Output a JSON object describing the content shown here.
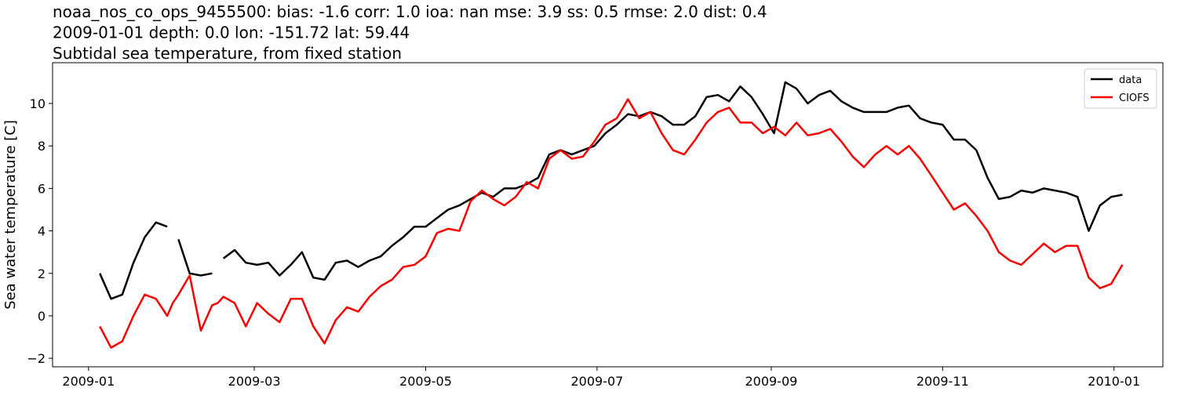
{
  "chart_data": {
    "type": "line",
    "title_lines": [
      "noaa_nos_co_ops_9455500: bias: -1.6  corr: 1.0  ioa: nan  mse: 3.9  ss: 0.5  rmse: 2.0  dist: 0.4",
      "2009-01-01 depth: 0.0 lon: -151.72 lat: 59.44",
      "Subtidal sea temperature, from fixed station"
    ],
    "ylabel": "Sea water temperature [C]",
    "x": [
      4,
      8,
      12,
      16,
      20,
      24,
      28,
      30,
      32,
      36,
      40,
      44,
      46,
      48,
      52,
      56,
      60,
      64,
      68,
      72,
      76,
      80,
      84,
      88,
      92,
      96,
      100,
      104,
      108,
      112,
      116,
      120,
      124,
      128,
      132,
      136,
      140,
      144,
      148,
      152,
      156,
      160,
      164,
      168,
      172,
      176,
      180,
      184,
      188,
      192,
      196,
      200,
      204,
      208,
      212,
      216,
      220,
      224,
      228,
      232,
      236,
      240,
      244,
      248,
      252,
      256,
      260,
      264,
      268,
      272,
      276,
      280,
      284,
      288,
      292,
      296,
      300,
      304,
      308,
      312,
      316,
      320,
      324,
      328,
      332,
      336,
      340,
      344,
      348,
      352,
      356,
      360,
      364,
      368
    ],
    "series": [
      {
        "name": "data",
        "color": "#000000",
        "values": [
          2.0,
          0.8,
          1.0,
          2.5,
          3.7,
          4.4,
          4.2,
          null,
          3.6,
          2.0,
          1.9,
          2.0,
          null,
          2.7,
          3.1,
          2.5,
          2.4,
          2.5,
          1.9,
          2.4,
          3.0,
          1.8,
          1.7,
          2.5,
          2.6,
          2.3,
          2.6,
          2.8,
          3.3,
          3.7,
          4.2,
          4.2,
          4.6,
          5.0,
          5.2,
          5.5,
          5.8,
          5.6,
          6.0,
          6.0,
          6.2,
          6.5,
          7.6,
          7.8,
          7.6,
          7.8,
          8.0,
          8.6,
          9.0,
          9.5,
          9.4,
          9.6,
          9.4,
          9.0,
          9.0,
          9.4,
          10.3,
          10.4,
          10.1,
          10.8,
          10.3,
          9.5,
          8.6,
          11.0,
          10.7,
          10.0,
          10.4,
          10.6,
          10.1,
          9.8,
          9.6,
          9.6,
          9.6,
          9.8,
          9.9,
          9.3,
          9.1,
          9.0,
          8.3,
          8.3,
          7.8,
          6.5,
          5.5,
          5.6,
          5.9,
          5.8,
          6.0,
          5.9,
          5.8,
          5.6,
          4.0,
          5.2,
          5.6,
          5.7
        ]
      },
      {
        "name": "CIOFS",
        "color": "#ff0000",
        "values": [
          -0.5,
          -1.5,
          -1.2,
          0.0,
          1.0,
          0.8,
          0.0,
          0.6,
          1.0,
          1.9,
          -0.7,
          0.5,
          0.6,
          0.9,
          0.6,
          -0.5,
          0.6,
          0.1,
          -0.3,
          0.8,
          0.8,
          -0.5,
          -1.3,
          -0.2,
          0.4,
          0.2,
          0.9,
          1.4,
          1.7,
          2.3,
          2.4,
          2.8,
          3.9,
          4.1,
          4.0,
          5.4,
          5.9,
          5.5,
          5.2,
          5.6,
          6.3,
          6.0,
          7.4,
          7.8,
          7.4,
          7.5,
          8.2,
          9.0,
          9.3,
          10.2,
          9.3,
          9.6,
          8.6,
          7.8,
          7.6,
          8.3,
          9.1,
          9.6,
          9.8,
          9.1,
          9.1,
          8.6,
          8.9,
          8.5,
          9.1,
          8.5,
          8.6,
          8.8,
          8.2,
          7.5,
          7.0,
          7.6,
          8.0,
          7.6,
          8.0,
          7.4,
          6.6,
          5.8,
          5.0,
          5.3,
          4.7,
          4.0,
          3.0,
          2.6,
          2.4,
          2.9,
          3.4,
          3.0,
          3.3,
          3.3,
          1.8,
          1.3,
          1.5,
          2.4
        ]
      }
    ],
    "xlim": [
      -12.8,
      382.4
    ],
    "xticks": [
      {
        "value": 0,
        "label": "2009-01"
      },
      {
        "value": 59,
        "label": "2009-03"
      },
      {
        "value": 120,
        "label": "2009-05"
      },
      {
        "value": 181,
        "label": "2009-07"
      },
      {
        "value": 243,
        "label": "2009-09"
      },
      {
        "value": 304,
        "label": "2009-11"
      },
      {
        "value": 365,
        "label": "2010-01"
      }
    ],
    "ylim": [
      -2.4,
      11.92
    ],
    "yticks": [
      {
        "value": -2,
        "label": "−2"
      },
      0,
      2,
      4,
      6,
      8,
      10
    ],
    "grid": false,
    "legend": "upper right"
  }
}
